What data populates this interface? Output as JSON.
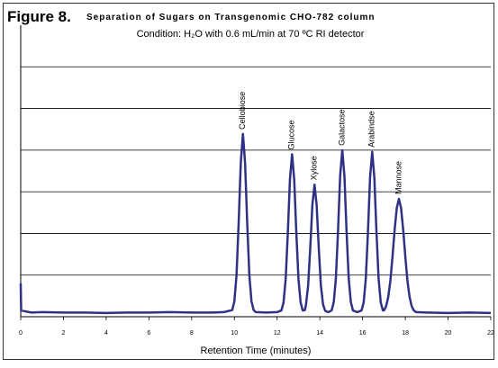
{
  "chart_data": {
    "type": "line",
    "figure_label": "Figure 8.",
    "title": "Separation of Sugars on Transgenomic CHO-782 column",
    "subtitle": "Condition: H₂O with 0.6 mL/min at 70 ºC RI detector",
    "x_label": "Retention Time (minutes)",
    "xlim": [
      0,
      22
    ],
    "xticks": [
      0,
      2,
      4,
      6,
      8,
      10,
      12,
      14,
      16,
      18,
      20,
      22
    ],
    "ylim": [
      0,
      7
    ],
    "yticks": [
      1,
      2,
      3,
      4,
      5,
      6
    ],
    "grid": true,
    "series": [
      {
        "color": "#2e3184",
        "x": [
          0,
          0.02,
          0.5,
          1,
          2,
          3,
          4,
          5,
          6,
          7,
          8,
          9,
          9.5,
          9.9,
          10.0,
          10.1,
          10.2,
          10.3,
          10.4,
          10.5,
          10.6,
          10.7,
          10.8,
          10.9,
          11.0,
          11.5,
          12.0,
          12.2,
          12.3,
          12.4,
          12.5,
          12.6,
          12.7,
          12.8,
          12.9,
          13.0,
          13.1,
          13.2,
          13.3,
          13.35,
          13.45,
          13.55,
          13.65,
          13.75,
          13.85,
          13.95,
          14.05,
          14.15,
          14.25,
          14.4,
          14.55,
          14.65,
          14.75,
          14.85,
          14.95,
          15.05,
          15.15,
          15.25,
          15.35,
          15.45,
          15.55,
          15.75,
          15.95,
          16.05,
          16.15,
          16.25,
          16.35,
          16.45,
          16.55,
          16.65,
          16.75,
          16.85,
          16.95,
          17.0,
          17.1,
          17.2,
          17.3,
          17.4,
          17.5,
          17.6,
          17.7,
          17.8,
          17.9,
          18.0,
          18.1,
          18.2,
          18.3,
          18.4,
          18.5,
          19,
          20,
          21,
          22
        ],
        "values": [
          0.8,
          0.15,
          0.1,
          0.11,
          0.1,
          0.1,
          0.09,
          0.1,
          0.1,
          0.11,
          0.1,
          0.1,
          0.11,
          0.16,
          0.37,
          1.0,
          2.25,
          3.7,
          4.39,
          3.7,
          2.25,
          1.0,
          0.37,
          0.16,
          0.11,
          0.1,
          0.11,
          0.15,
          0.34,
          0.9,
          2.0,
          3.29,
          3.9,
          3.29,
          2.0,
          0.9,
          0.34,
          0.15,
          0.16,
          0.29,
          0.74,
          1.64,
          2.68,
          3.17,
          2.68,
          1.64,
          0.74,
          0.29,
          0.14,
          0.11,
          0.15,
          0.35,
          0.92,
          2.05,
          3.38,
          4.0,
          3.38,
          2.05,
          0.92,
          0.35,
          0.15,
          0.11,
          0.15,
          0.34,
          0.91,
          2.03,
          3.34,
          3.96,
          3.34,
          2.03,
          0.91,
          0.34,
          0.15,
          0.15,
          0.25,
          0.47,
          0.86,
          1.44,
          2.09,
          2.61,
          2.83,
          2.61,
          2.09,
          1.44,
          0.86,
          0.47,
          0.25,
          0.15,
          0.11,
          0.1,
          0.09,
          0.1,
          0.09
        ]
      }
    ],
    "annotations": [
      {
        "text": "Cellobiose",
        "x": 10.4
      },
      {
        "text": "Glucose",
        "x": 12.7
      },
      {
        "text": "Xylose",
        "x": 13.75
      },
      {
        "text": "Galactose",
        "x": 15.05
      },
      {
        "text": "Arabindse",
        "x": 16.45
      },
      {
        "text": "Mannose",
        "x": 17.7
      }
    ]
  }
}
